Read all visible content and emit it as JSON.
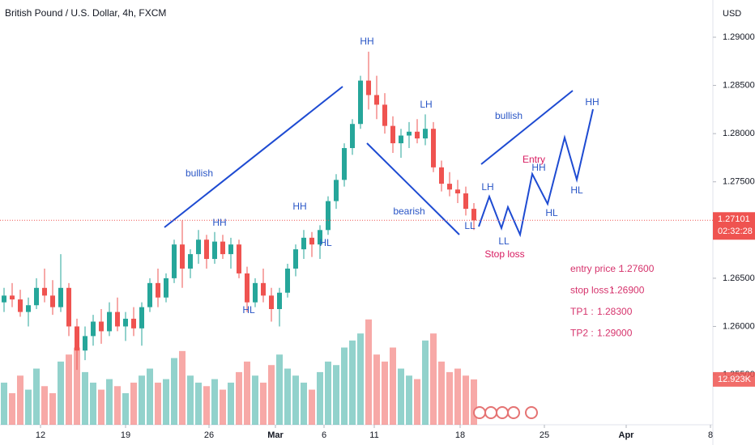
{
  "chart_data": {
    "type": "candlestick",
    "title": "British Pound / U.S. Dollar, 4h, FXCM",
    "currency": "USD",
    "up_color": "#26a69a",
    "down_color": "#ef5350",
    "grid": false,
    "candles": [
      [
        1.2625,
        1.264,
        1.2615,
        1.2632
      ],
      [
        1.2632,
        1.2645,
        1.262,
        1.2628
      ],
      [
        1.2628,
        1.2638,
        1.261,
        1.2615
      ],
      [
        1.2615,
        1.263,
        1.26,
        1.2622
      ],
      [
        1.2622,
        1.265,
        1.2618,
        1.264
      ],
      [
        1.264,
        1.266,
        1.2625,
        1.2632
      ],
      [
        1.2632,
        1.2648,
        1.2612,
        1.262
      ],
      [
        1.262,
        1.2675,
        1.2615,
        1.264
      ],
      [
        1.264,
        1.2645,
        1.259,
        1.26
      ],
      [
        1.26,
        1.2608,
        1.2555,
        1.2575
      ],
      [
        1.2575,
        1.26,
        1.2565,
        1.259
      ],
      [
        1.259,
        1.2612,
        1.258,
        1.2605
      ],
      [
        1.2605,
        1.2618,
        1.2582,
        1.2595
      ],
      [
        1.2595,
        1.2625,
        1.259,
        1.2615
      ],
      [
        1.2615,
        1.263,
        1.2595,
        1.26
      ],
      [
        1.26,
        1.2615,
        1.2585,
        1.2608
      ],
      [
        1.2608,
        1.262,
        1.259,
        1.2598
      ],
      [
        1.2598,
        1.2625,
        1.258,
        1.262
      ],
      [
        1.262,
        1.265,
        1.2615,
        1.2645
      ],
      [
        1.2645,
        1.266,
        1.262,
        1.263
      ],
      [
        1.263,
        1.2655,
        1.2625,
        1.265
      ],
      [
        1.265,
        1.269,
        1.2645,
        1.2685
      ],
      [
        1.2685,
        1.271,
        1.264,
        1.266
      ],
      [
        1.266,
        1.268,
        1.265,
        1.2675
      ],
      [
        1.2675,
        1.27,
        1.2665,
        1.269
      ],
      [
        1.269,
        1.2695,
        1.266,
        1.267
      ],
      [
        1.267,
        1.2698,
        1.2665,
        1.2688
      ],
      [
        1.2688,
        1.2695,
        1.267,
        1.2675
      ],
      [
        1.2675,
        1.2692,
        1.266,
        1.2685
      ],
      [
        1.2685,
        1.269,
        1.265,
        1.2655
      ],
      [
        1.2655,
        1.2662,
        1.2615,
        1.2625
      ],
      [
        1.2625,
        1.265,
        1.262,
        1.2645
      ],
      [
        1.2645,
        1.266,
        1.2625,
        1.2632
      ],
      [
        1.2632,
        1.264,
        1.2605,
        1.2618
      ],
      [
        1.2618,
        1.264,
        1.26,
        1.2635
      ],
      [
        1.2635,
        1.2665,
        1.263,
        1.266
      ],
      [
        1.266,
        1.2685,
        1.2652,
        1.268
      ],
      [
        1.268,
        1.27,
        1.267,
        1.2692
      ],
      [
        1.2692,
        1.2698,
        1.2672,
        1.2685
      ],
      [
        1.2685,
        1.2705,
        1.267,
        1.27
      ],
      [
        1.27,
        1.2735,
        1.2695,
        1.273
      ],
      [
        1.273,
        1.2758,
        1.2722,
        1.2752
      ],
      [
        1.2752,
        1.279,
        1.2745,
        1.2785
      ],
      [
        1.2785,
        1.2815,
        1.2778,
        1.281
      ],
      [
        1.281,
        1.286,
        1.2805,
        1.2855
      ],
      [
        1.2855,
        1.2885,
        1.2825,
        1.284
      ],
      [
        1.284,
        1.286,
        1.2815,
        1.283
      ],
      [
        1.283,
        1.2842,
        1.28,
        1.2808
      ],
      [
        1.2808,
        1.2818,
        1.278,
        1.279
      ],
      [
        1.279,
        1.2805,
        1.2775,
        1.2798
      ],
      [
        1.2798,
        1.2812,
        1.2785,
        1.2802
      ],
      [
        1.2802,
        1.2815,
        1.279,
        1.2795
      ],
      [
        1.2795,
        1.282,
        1.2788,
        1.2805
      ],
      [
        1.2805,
        1.2812,
        1.276,
        1.2765
      ],
      [
        1.2765,
        1.2772,
        1.274,
        1.2748
      ],
      [
        1.2748,
        1.276,
        1.2735,
        1.2742
      ],
      [
        1.2742,
        1.2752,
        1.2728,
        1.2738
      ],
      [
        1.2738,
        1.2745,
        1.2715,
        1.2722
      ],
      [
        1.2722,
        1.2728,
        1.27,
        1.271
      ]
    ],
    "volumes": [
      12,
      9,
      14,
      10,
      16,
      11,
      9,
      18,
      20,
      22,
      15,
      12,
      10,
      13,
      11,
      9,
      12,
      14,
      16,
      12,
      13,
      19,
      21,
      14,
      12,
      11,
      13,
      10,
      12,
      15,
      18,
      14,
      12,
      17,
      20,
      16,
      14,
      12,
      10,
      15,
      18,
      17,
      22,
      24,
      26,
      30,
      20,
      18,
      22,
      16,
      14,
      13,
      24,
      26,
      18,
      15,
      16,
      14,
      12.923
    ],
    "volume_ylim": [
      0,
      50
    ],
    "volume_label": {
      "value": 12.923,
      "label": "12.923K"
    },
    "last_price": {
      "value": 1.27101,
      "label": "1.27101"
    },
    "countdown": "02:32:28",
    "xlim": [
      -0.5,
      87.5
    ],
    "xticks": [
      {
        "value": 4.5,
        "label": "12"
      },
      {
        "value": 15,
        "label": "19"
      },
      {
        "value": 25.3,
        "label": "26"
      },
      {
        "value": 33.5,
        "label": "Mar"
      },
      {
        "value": 39.5,
        "label": "6"
      },
      {
        "value": 45.7,
        "label": "11"
      },
      {
        "value": 56.3,
        "label": "18"
      },
      {
        "value": 66.7,
        "label": "25"
      },
      {
        "value": 76.8,
        "label": "Apr"
      },
      {
        "value": 87.2,
        "label": "8"
      }
    ],
    "ylim": [
      1.2498,
      1.29386
    ],
    "yticks": [
      {
        "value": 1.255,
        "label": "1.25500"
      },
      {
        "value": 1.26,
        "label": "1.26000"
      },
      {
        "value": 1.265,
        "label": "1.26500"
      },
      {
        "value": 1.275,
        "label": "1.27500"
      },
      {
        "value": 1.28,
        "label": "1.28000"
      },
      {
        "value": 1.285,
        "label": "1.28500"
      },
      {
        "value": 1.29,
        "label": "1.29000"
      }
    ],
    "annotations": [
      "HH",
      "HH",
      "HL",
      "HH",
      "HL",
      "LH",
      "bearish",
      "LL",
      "LH",
      "LL",
      "Stop loss",
      "Entry",
      "HH",
      "HL",
      "HL",
      "HH",
      "bullish",
      "bullish"
    ],
    "notes": [
      {
        "label": "entry price :",
        "value": "1.27600"
      },
      {
        "label": "stop loss :",
        "value": "1.26900"
      },
      {
        "label": "TP1 :",
        "value": "1.28300"
      },
      {
        "label": "TP2 :",
        "value": "1.29000"
      }
    ]
  }
}
